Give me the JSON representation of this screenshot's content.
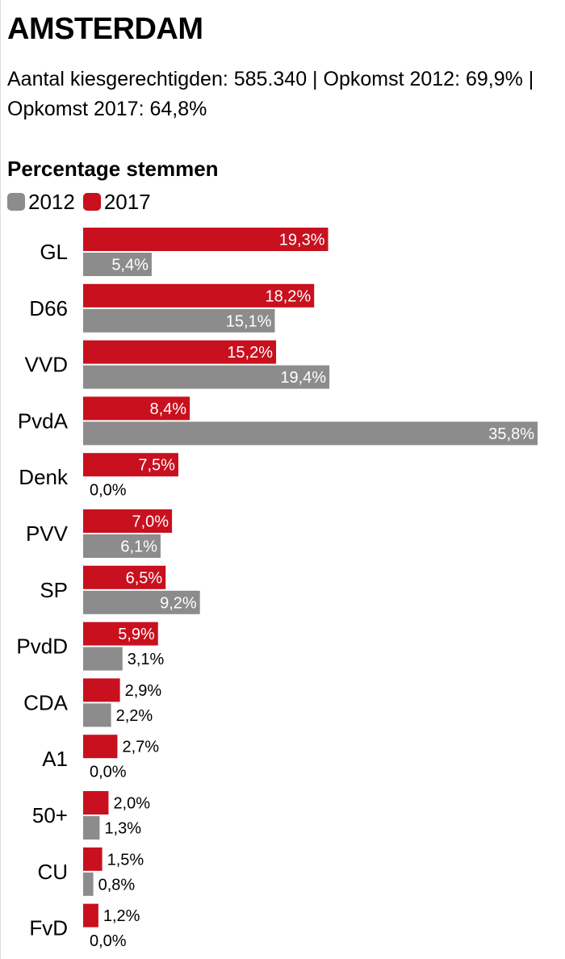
{
  "header": {
    "title": "AMSTERDAM",
    "subtitle": "Aantal kiesgerechtigden: 585.340 | Opkomst 2012: 69,9% | Opkomst 2017: 64,8%"
  },
  "colors": {
    "series_2017": "#c8101e",
    "series_2012": "#8c8c8c"
  },
  "chart_data": {
    "type": "bar",
    "orientation": "horizontal",
    "title": "Percentage stemmen",
    "categories": [
      "GL",
      "D66",
      "VVD",
      "PvdA",
      "Denk",
      "PVV",
      "SP",
      "PvdD",
      "CDA",
      "A1",
      "50+",
      "CU",
      "FvD"
    ],
    "series": [
      {
        "name": "2017",
        "values": [
          19.3,
          18.2,
          15.2,
          8.4,
          7.5,
          7.0,
          6.5,
          5.9,
          2.9,
          2.7,
          2.0,
          1.5,
          1.2
        ],
        "labels": [
          "19,3%",
          "18,2%",
          "15,2%",
          "8,4%",
          "7,5%",
          "7,0%",
          "6,5%",
          "5,9%",
          "2,9%",
          "2,7%",
          "2,0%",
          "1,5%",
          "1,2%"
        ]
      },
      {
        "name": "2012",
        "values": [
          5.4,
          15.1,
          19.4,
          35.8,
          0.0,
          6.1,
          9.2,
          3.1,
          2.2,
          0.0,
          1.3,
          0.8,
          0.0
        ],
        "labels": [
          "5,4%",
          "15,1%",
          "19,4%",
          "35,8%",
          "0,0%",
          "6,1%",
          "9,2%",
          "3,1%",
          "2,2%",
          "0,0%",
          "1,3%",
          "0,8%",
          "0,0%"
        ]
      }
    ],
    "legend": [
      "2012",
      "2017"
    ],
    "xlim": [
      0,
      35.8
    ],
    "grid": false
  }
}
